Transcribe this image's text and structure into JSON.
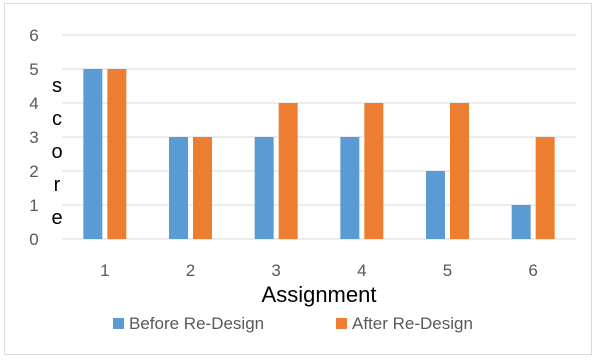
{
  "chart_data": {
    "type": "bar",
    "categories": [
      "1",
      "2",
      "3",
      "4",
      "5",
      "6"
    ],
    "series": [
      {
        "name": "Before Re-Design",
        "values": [
          5,
          3,
          3,
          3,
          2,
          1
        ],
        "color": "#5b9bd5"
      },
      {
        "name": "After Re-Design",
        "values": [
          5,
          3,
          4,
          4,
          4,
          3
        ],
        "color": "#ed7d31"
      }
    ],
    "xlabel": "Assignment",
    "ylabel": "score",
    "ylim": [
      0,
      6
    ],
    "yticks": [
      "0",
      "1",
      "2",
      "3",
      "4",
      "5",
      "6"
    ],
    "grid": true,
    "gridline_color": "#d9d9d9",
    "legend_position": "bottom"
  }
}
